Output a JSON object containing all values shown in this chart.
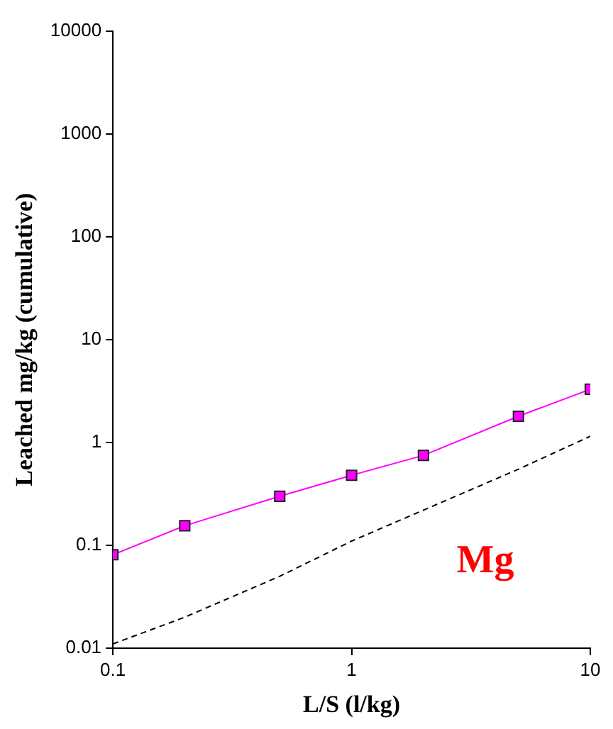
{
  "chart_data": {
    "type": "line",
    "xlabel": "L/S (l/kg)",
    "ylabel": "Leached mg/kg (cumulative)",
    "log": "xy",
    "grid": false,
    "legend": false,
    "xlim": [
      0.1,
      10
    ],
    "xticks": [
      0.1,
      1,
      10
    ],
    "ylim": [
      0.01,
      10000
    ],
    "yticks": [
      0.01,
      0.1,
      1,
      10,
      100,
      1000,
      10000
    ],
    "annotations": [
      "Mg"
    ],
    "series": [
      {
        "color": "#ff00ff",
        "marker": "square",
        "line_style": "solid",
        "x": [
          0.1,
          0.2,
          0.5,
          1,
          2,
          5,
          10
        ],
        "values": [
          0.081,
          0.155,
          0.3,
          0.48,
          0.75,
          1.8,
          3.3
        ]
      },
      {
        "color": "#000000",
        "marker": "none",
        "line_style": "dashed",
        "x": [
          0.1,
          0.2,
          0.5,
          1,
          2,
          5,
          10
        ],
        "values": [
          0.011,
          0.02,
          0.05,
          0.11,
          0.22,
          0.55,
          1.15
        ]
      }
    ]
  }
}
